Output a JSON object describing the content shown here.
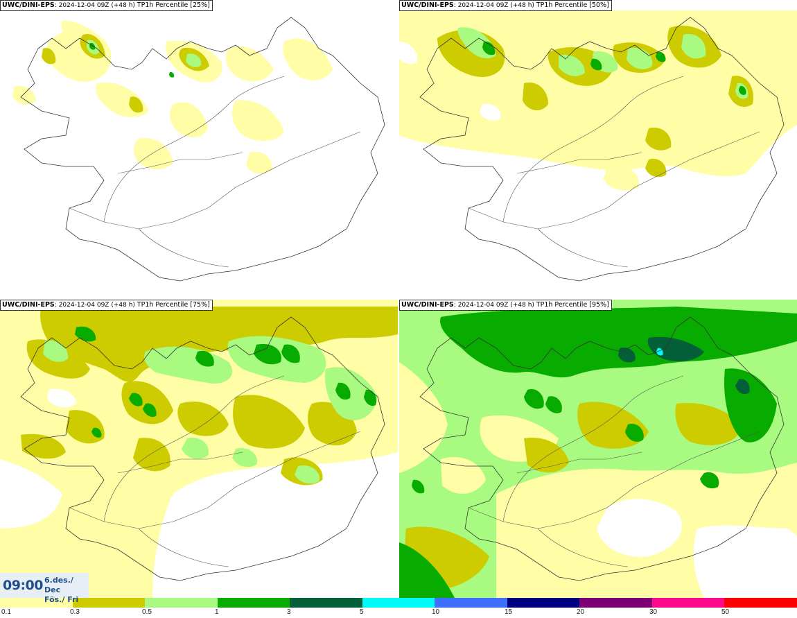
{
  "panels": [
    {
      "source": "UWC/DINI-EPS",
      "run": "2024-12-04 09Z (+48 h)",
      "product": "TP1h Percentile [25%]"
    },
    {
      "source": "UWC/DINI-EPS",
      "run": "2024-12-04 09Z (+48 h)",
      "product": "TP1h Percentile [50%]"
    },
    {
      "source": "UWC/DINI-EPS",
      "run": "2024-12-04 09Z (+48 h)",
      "product": "TP1h Percentile [75%]"
    },
    {
      "source": "UWC/DINI-EPS",
      "run": "2024-12-04 09Z (+48 h)",
      "product": "TP1h Percentile [95%]"
    }
  ],
  "valid_time": {
    "time": "09:00",
    "date_line1": "6.des./ Dec",
    "date_line2": "Fös./ Fri"
  },
  "colorbar": {
    "ticks": [
      "0.1",
      "0.3",
      "0.5",
      "1",
      "3",
      "5",
      "10",
      "15",
      "20",
      "30",
      "50"
    ],
    "colors": [
      "#fffea6",
      "#cccc00",
      "#a8fb80",
      "#08ab00",
      "#035f38",
      "#00fcf8",
      "#3f6ffc",
      "#000080",
      "#7c0073",
      "#fd0a8c",
      "#fb0000"
    ]
  }
}
